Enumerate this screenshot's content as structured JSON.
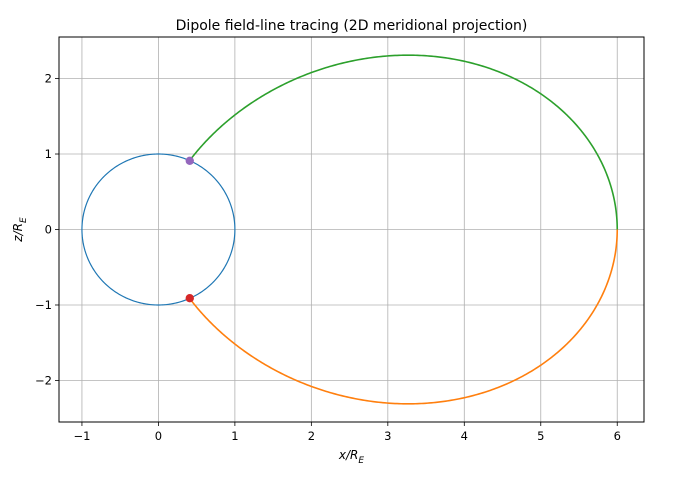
{
  "chart_data": {
    "type": "line",
    "title": "Dipole field-line tracing (2D meridional projection)",
    "xlabel": "x/R",
    "xlabel_sub": "E",
    "ylabel": "z/R",
    "ylabel_sub": "E",
    "xlim": [
      -1.3,
      6.35
    ],
    "ylim": [
      -2.55,
      2.55
    ],
    "xticks": [
      -1,
      0,
      1,
      2,
      3,
      4,
      5,
      6
    ],
    "xtick_labels": [
      "−1",
      "0",
      "1",
      "2",
      "3",
      "4",
      "5",
      "6"
    ],
    "yticks": [
      -2,
      -1,
      0,
      1,
      2
    ],
    "ytick_labels": [
      "−2",
      "−1",
      "0",
      "1",
      "2"
    ],
    "grid": true,
    "earth_circle": {
      "radius": 1,
      "color": "#1f77b4"
    },
    "field_line": {
      "L": 6
    },
    "series": [
      {
        "hemisphere": "north",
        "color": "#2ca02c"
      },
      {
        "hemisphere": "south",
        "color": "#ff7f0e"
      }
    ],
    "points": [
      {
        "x": 0.41,
        "z": 0.91,
        "color": "#9467bd"
      },
      {
        "x": 0.41,
        "z": -0.91,
        "color": "#d62728"
      }
    ]
  }
}
